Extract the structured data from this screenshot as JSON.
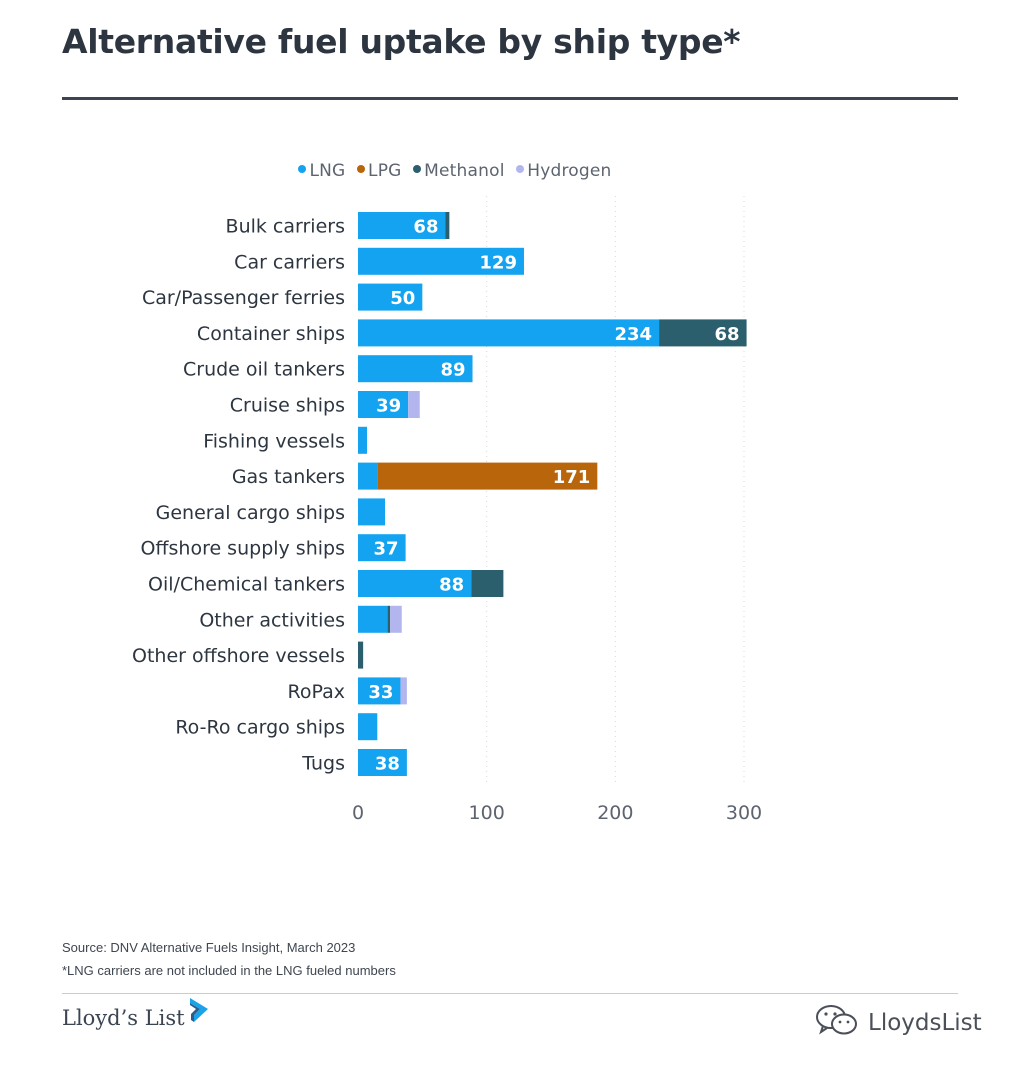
{
  "title": "Alternative fuel uptake by ship type*",
  "legend": [
    {
      "label": "LNG",
      "color": "#14a3f0"
    },
    {
      "label": "LPG",
      "color": "#b8650c"
    },
    {
      "label": "Methanol",
      "color": "#2c5f6e"
    },
    {
      "label": "Hydrogen",
      "color": "#b3b6ee"
    }
  ],
  "chart_data": {
    "type": "bar",
    "orientation": "horizontal",
    "stacked": true,
    "categories": [
      "Bulk carriers",
      "Car carriers",
      "Car/Passenger ferries",
      "Container ships",
      "Crude oil tankers",
      "Cruise ships",
      "Fishing vessels",
      "Gas tankers",
      "General cargo ships",
      "Offshore supply ships",
      "Oil/Chemical tankers",
      "Other activities",
      "Other offshore vessels",
      "RoPax",
      "Ro-Ro cargo ships",
      "Tugs"
    ],
    "series": [
      {
        "name": "LNG",
        "color": "#14a3f0",
        "values": [
          68,
          129,
          50,
          234,
          89,
          39,
          7,
          15,
          21,
          37,
          88,
          23,
          0,
          33,
          15,
          38
        ],
        "labels": [
          "68",
          "129",
          "50",
          "234",
          "89",
          "39",
          "",
          "",
          "",
          "37",
          "88",
          "",
          "",
          "33",
          "",
          "38"
        ]
      },
      {
        "name": "LPG",
        "color": "#b8650c",
        "values": [
          0,
          0,
          0,
          0,
          0,
          0,
          0,
          171,
          0,
          0,
          0,
          0,
          0,
          0,
          0,
          0
        ],
        "labels": [
          "",
          "",
          "",
          "",
          "",
          "",
          "",
          "171",
          "",
          "",
          "",
          "",
          "",
          "",
          "",
          ""
        ]
      },
      {
        "name": "Methanol",
        "color": "#2c5f6e",
        "values": [
          3,
          0,
          0,
          68,
          0,
          0,
          0,
          0,
          0,
          0,
          25,
          2,
          4,
          0,
          0,
          0
        ],
        "labels": [
          "",
          "",
          "",
          "68",
          "",
          "",
          "",
          "",
          "",
          "",
          "",
          "",
          "",
          "",
          "",
          ""
        ]
      },
      {
        "name": "Hydrogen",
        "color": "#b3b6ee",
        "values": [
          0,
          0,
          0,
          0,
          0,
          9,
          0,
          0,
          0,
          0,
          0,
          9,
          0,
          5,
          0,
          0
        ],
        "labels": [
          "",
          "",
          "",
          "",
          "",
          "",
          "",
          "",
          "",
          "",
          "",
          "",
          "",
          "",
          "",
          ""
        ]
      }
    ],
    "xlim": [
      0,
      300
    ],
    "xticks": [
      0,
      100,
      200,
      300
    ],
    "grid": "vertical-dotted",
    "legend_position": "top"
  },
  "footer": {
    "source": "Source: DNV Alternative Fuels Insight, March 2023",
    "note": "*LNG carriers are not included in the LNG fueled numbers"
  },
  "brand": {
    "name": "Lloyd’s List",
    "icon": "chevron-logo-icon"
  },
  "watermark": {
    "text": "LloydsList",
    "icon": "wechat-icon"
  }
}
